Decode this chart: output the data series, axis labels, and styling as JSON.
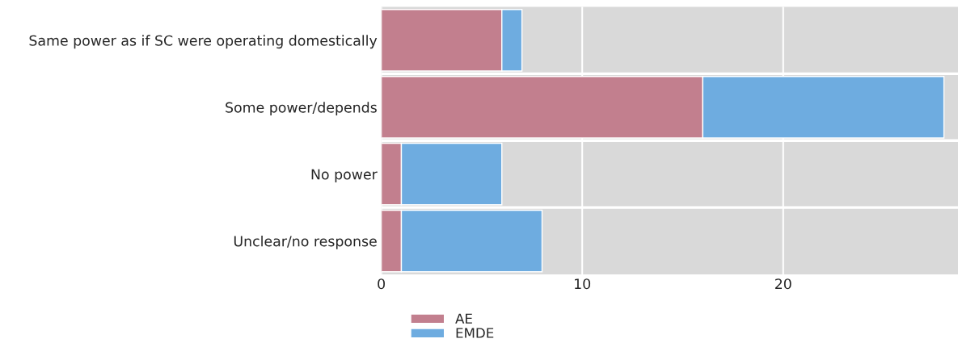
{
  "chart_data": {
    "type": "bar",
    "orientation": "horizontal",
    "stacked": true,
    "categories": [
      "Same power as if SC were operating domestically",
      "Some power/depends",
      "No power",
      "Unclear/no response"
    ],
    "series": [
      {
        "name": "AE",
        "color": "#c27f8e",
        "values": [
          6,
          16,
          1,
          1
        ]
      },
      {
        "name": "EMDE",
        "color": "#6eace0",
        "values": [
          1,
          12,
          5,
          7
        ]
      }
    ],
    "xlim": [
      0,
      28.7
    ],
    "xticks": [
      0,
      10,
      20
    ],
    "grid": true,
    "legend": "bottom"
  }
}
